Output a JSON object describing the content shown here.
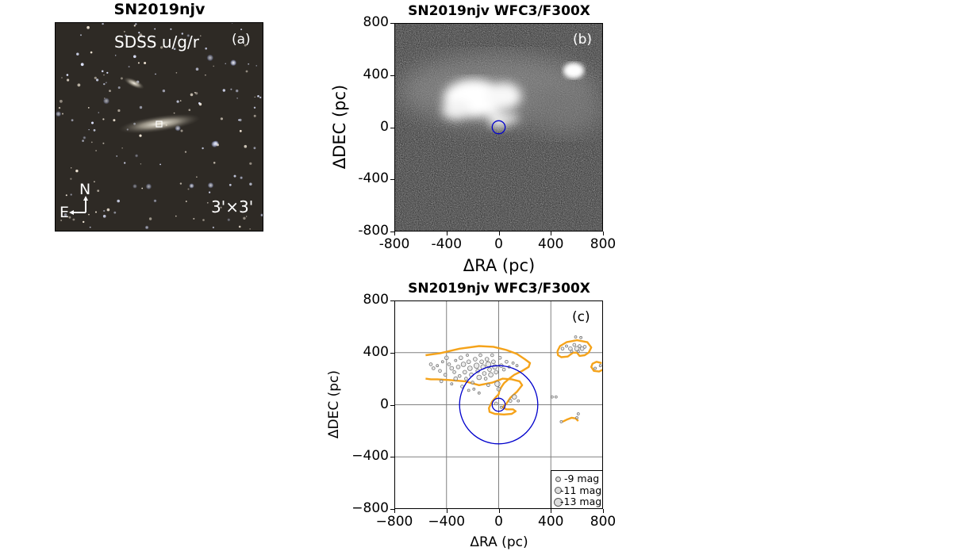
{
  "panel_a": {
    "title": "SN2019njv",
    "label": "SDSS u/g/r",
    "tag": "(a)",
    "north": "N",
    "east": "E",
    "scale": "3'×3'"
  },
  "panel_b": {
    "title": "SN2019njv WFC3/F300X",
    "tag": "(b)"
  },
  "panel_c": {
    "title": "SN2019njv WFC3/F300X",
    "tag": "(c)",
    "legend": [
      "-9 mag",
      "-11 mag",
      "-13 mag"
    ]
  },
  "colors": {
    "circle": "#0000cc",
    "contour": "#f5a31a",
    "grid": "#808080",
    "source_edge": "#777777",
    "source_fill": "#dcdcdc"
  },
  "chart_data": [
    {
      "type": "image",
      "title": "SN2019njv WFC3/F300X",
      "xlabel": "ΔRA (pc)",
      "ylabel": "ΔDEC (pc)",
      "xlim": [
        -800,
        800
      ],
      "ylim": [
        -800,
        800
      ],
      "xticks": [
        "-800",
        "-400",
        "0",
        "400",
        "800"
      ],
      "yticks": [
        "800",
        "400",
        "0",
        "-400",
        "-800"
      ],
      "marker": {
        "shape": "circle",
        "x": 0,
        "y": 0,
        "radius_pc": 50
      }
    },
    {
      "type": "scatter",
      "title": "SN2019njv WFC3/F300X",
      "xlabel": "ΔRA (pc)",
      "ylabel": "ΔDEC (pc)",
      "xlim": [
        -800,
        800
      ],
      "ylim": [
        -800,
        800
      ],
      "xticks": [
        "−800",
        "−400",
        "0",
        "400",
        "800"
      ],
      "yticks": [
        "800",
        "400",
        "0",
        "−400",
        "−800"
      ],
      "grid": true,
      "circles": [
        {
          "x": 0,
          "y": 0,
          "radius_pc": 50
        },
        {
          "x": 0,
          "y": 0,
          "radius_pc": 300
        }
      ],
      "legend": [
        "-9 mag",
        "-11 mag",
        "-13 mag"
      ],
      "contours": [
        {
          "name": "main",
          "points": [
            [
              -560,
              380
            ],
            [
              -450,
              395
            ],
            [
              -300,
              430
            ],
            [
              -150,
              450
            ],
            [
              -40,
              445
            ],
            [
              60,
              420
            ],
            [
              140,
              390
            ],
            [
              200,
              350
            ],
            [
              240,
              320
            ],
            [
              230,
              290
            ],
            [
              180,
              260
            ],
            [
              120,
              230
            ],
            [
              80,
              200
            ],
            [
              40,
              165
            ],
            [
              20,
              135
            ],
            [
              5,
              105
            ],
            [
              0,
              80
            ],
            [
              -20,
              60
            ],
            [
              -50,
              25
            ],
            [
              -75,
              -25
            ],
            [
              -70,
              -55
            ],
            [
              -30,
              -70
            ],
            [
              40,
              -75
            ],
            [
              100,
              -70
            ],
            [
              130,
              -50
            ],
            [
              110,
              -35
            ],
            [
              60,
              -35
            ],
            [
              30,
              -20
            ],
            [
              60,
              10
            ],
            [
              90,
              55
            ],
            [
              140,
              100
            ],
            [
              180,
              150
            ],
            [
              160,
              180
            ],
            [
              100,
              195
            ],
            [
              30,
              200
            ],
            [
              -50,
              170
            ],
            [
              -150,
              150
            ],
            [
              -260,
              180
            ],
            [
              -380,
              190
            ],
            [
              -470,
              195
            ],
            [
              -520,
              195
            ],
            [
              -560,
              200
            ]
          ]
        },
        {
          "name": "upper-right",
          "points": [
            [
              450,
              410
            ],
            [
              470,
              450
            ],
            [
              520,
              480
            ],
            [
              600,
              495
            ],
            [
              680,
              480
            ],
            [
              710,
              440
            ],
            [
              690,
              400
            ],
            [
              660,
              380
            ],
            [
              620,
              375
            ],
            [
              600,
              400
            ],
            [
              570,
              400
            ],
            [
              530,
              370
            ],
            [
              480,
              365
            ],
            [
              455,
              380
            ],
            [
              450,
              410
            ]
          ]
        },
        {
          "name": "right-edge",
          "points": [
            [
              790,
              320
            ],
            [
              750,
              330
            ],
            [
              720,
              315
            ],
            [
              710,
              290
            ],
            [
              730,
              260
            ],
            [
              770,
              255
            ],
            [
              800,
              270
            ]
          ]
        },
        {
          "name": "small",
          "points": [
            [
              490,
              -130
            ],
            [
              520,
              -115
            ],
            [
              560,
              -100
            ],
            [
              590,
              -105
            ],
            [
              610,
              -125
            ]
          ]
        }
      ],
      "points": [
        {
          "x": -520,
          "y": 310,
          "mag": -9.5
        },
        {
          "x": -500,
          "y": 280,
          "mag": -9.5
        },
        {
          "x": -470,
          "y": 300,
          "mag": -9
        },
        {
          "x": -450,
          "y": 260,
          "mag": -9.5
        },
        {
          "x": -430,
          "y": 330,
          "mag": -9
        },
        {
          "x": -400,
          "y": 360,
          "mag": -10
        },
        {
          "x": -380,
          "y": 310,
          "mag": -9.5
        },
        {
          "x": -360,
          "y": 280,
          "mag": -10
        },
        {
          "x": -340,
          "y": 250,
          "mag": -9.5
        },
        {
          "x": -330,
          "y": 340,
          "mag": -9
        },
        {
          "x": -310,
          "y": 290,
          "mag": -10
        },
        {
          "x": -300,
          "y": 220,
          "mag": -9.5
        },
        {
          "x": -290,
          "y": 360,
          "mag": -10
        },
        {
          "x": -270,
          "y": 310,
          "mag": -10.5
        },
        {
          "x": -260,
          "y": 250,
          "mag": -10
        },
        {
          "x": -250,
          "y": 200,
          "mag": -9.5
        },
        {
          "x": -240,
          "y": 380,
          "mag": -9
        },
        {
          "x": -230,
          "y": 330,
          "mag": -10
        },
        {
          "x": -220,
          "y": 280,
          "mag": -10.5
        },
        {
          "x": -210,
          "y": 230,
          "mag": -10
        },
        {
          "x": -200,
          "y": 170,
          "mag": -9.5
        },
        {
          "x": -190,
          "y": 120,
          "mag": -9
        },
        {
          "x": -180,
          "y": 350,
          "mag": -10
        },
        {
          "x": -170,
          "y": 300,
          "mag": -11
        },
        {
          "x": -160,
          "y": 260,
          "mag": -10
        },
        {
          "x": -150,
          "y": 210,
          "mag": -10.5
        },
        {
          "x": -140,
          "y": 380,
          "mag": -9.5
        },
        {
          "x": -130,
          "y": 330,
          "mag": -10
        },
        {
          "x": -120,
          "y": 290,
          "mag": -10.5
        },
        {
          "x": -110,
          "y": 240,
          "mag": -10
        },
        {
          "x": -100,
          "y": 200,
          "mag": -9.5
        },
        {
          "x": -90,
          "y": 350,
          "mag": -10
        },
        {
          "x": -80,
          "y": 310,
          "mag": -11
        },
        {
          "x": -70,
          "y": 270,
          "mag": -10
        },
        {
          "x": -60,
          "y": 230,
          "mag": -10.5
        },
        {
          "x": -50,
          "y": 380,
          "mag": -9.5
        },
        {
          "x": -40,
          "y": 330,
          "mag": -10
        },
        {
          "x": -30,
          "y": 290,
          "mag": -10.5
        },
        {
          "x": -20,
          "y": 250,
          "mag": -10
        },
        {
          "x": -10,
          "y": 160,
          "mag": -11
        },
        {
          "x": 0,
          "y": 120,
          "mag": -10
        },
        {
          "x": 10,
          "y": 360,
          "mag": -9.5
        },
        {
          "x": 20,
          "y": 300,
          "mag": -10
        },
        {
          "x": 40,
          "y": 270,
          "mag": -9.5
        },
        {
          "x": 60,
          "y": 330,
          "mag": -9.5
        },
        {
          "x": 80,
          "y": 290,
          "mag": -9
        },
        {
          "x": 110,
          "y": 320,
          "mag": -9
        },
        {
          "x": 140,
          "y": 300,
          "mag": -9
        },
        {
          "x": -440,
          "y": 180,
          "mag": -9.5
        },
        {
          "x": -360,
          "y": 160,
          "mag": -9
        },
        {
          "x": -280,
          "y": 140,
          "mag": -9.5
        },
        {
          "x": -230,
          "y": 110,
          "mag": -9
        },
        {
          "x": -330,
          "y": 200,
          "mag": -10
        },
        {
          "x": -410,
          "y": 230,
          "mag": -9.5
        },
        {
          "x": -150,
          "y": 90,
          "mag": -9
        },
        {
          "x": -80,
          "y": 150,
          "mag": -9.5
        },
        {
          "x": 120,
          "y": 60,
          "mag": -10.5
        },
        {
          "x": 90,
          "y": 30,
          "mag": -9.5
        },
        {
          "x": 150,
          "y": 30,
          "mag": -9
        },
        {
          "x": -20,
          "y": 10,
          "mag": -9.5
        },
        {
          "x": 20,
          "y": -20,
          "mag": -9
        },
        {
          "x": 490,
          "y": 430,
          "mag": -9.5
        },
        {
          "x": 520,
          "y": 450,
          "mag": -9
        },
        {
          "x": 550,
          "y": 430,
          "mag": -10
        },
        {
          "x": 580,
          "y": 460,
          "mag": -9.5
        },
        {
          "x": 600,
          "y": 430,
          "mag": -10.5
        },
        {
          "x": 620,
          "y": 450,
          "mag": -9.5
        },
        {
          "x": 640,
          "y": 430,
          "mag": -10
        },
        {
          "x": 660,
          "y": 445,
          "mag": -9.5
        },
        {
          "x": 560,
          "y": 410,
          "mag": -9
        },
        {
          "x": 610,
          "y": 410,
          "mag": -9
        },
        {
          "x": 590,
          "y": 520,
          "mag": -9
        },
        {
          "x": 630,
          "y": 515,
          "mag": -9
        },
        {
          "x": 410,
          "y": 60,
          "mag": -9
        },
        {
          "x": 440,
          "y": 60,
          "mag": -9
        },
        {
          "x": 780,
          "y": 300,
          "mag": -9
        },
        {
          "x": 740,
          "y": 280,
          "mag": -9
        },
        {
          "x": 480,
          "y": -130,
          "mag": -9
        },
        {
          "x": 610,
          "y": -70,
          "mag": -9
        },
        {
          "x": 600,
          "y": -100,
          "mag": -9
        }
      ]
    }
  ]
}
